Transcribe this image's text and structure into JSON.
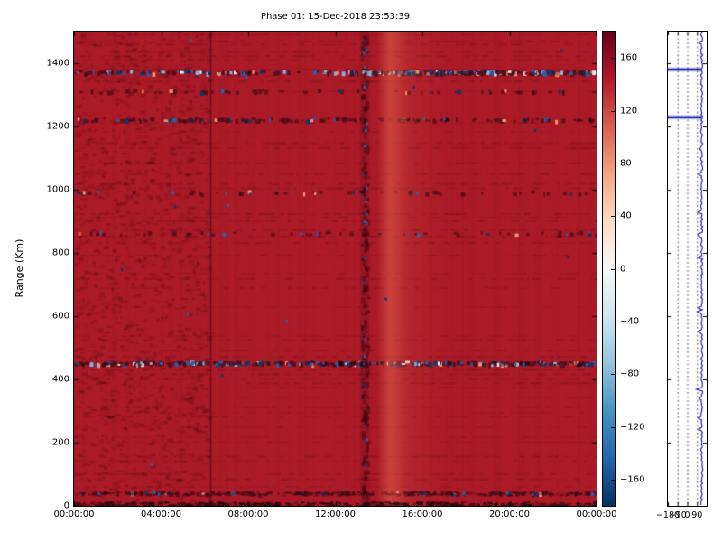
{
  "title": "Phase 01: 15-Dec-2018 23:53:39",
  "axes": {
    "ylabel": "Range (Km)"
  },
  "chart_data": {
    "type": "heatmap",
    "title": "Phase 01: 15-Dec-2018 23:53:39",
    "xlabel": "",
    "ylabel": "Range (Km)",
    "x_axis": {
      "unit": "time-of-day",
      "range_hours": [
        0,
        24
      ],
      "tick_hours": [
        0,
        4,
        8,
        12,
        16,
        20,
        24
      ],
      "tick_labels": [
        "00:00:00",
        "04:00:00",
        "08:00:00",
        "12:00:00",
        "16:00:00",
        "20:00:00",
        "00:00:00"
      ]
    },
    "y_axis": {
      "unit": "Km",
      "range": [
        0,
        1500
      ],
      "ticks": [
        0,
        200,
        400,
        600,
        800,
        1000,
        1200,
        1400
      ],
      "tick_labels": [
        "0",
        "200",
        "400",
        "600",
        "800",
        "1000",
        "1200",
        "1400"
      ]
    },
    "value_scale": {
      "range": [
        -180,
        180
      ],
      "colormap": "RdBu_r",
      "gradient_stops_bottom_to_top": [
        "#053061",
        "#2166ac",
        "#4393c3",
        "#92c5de",
        "#d1e5f0",
        "#f7f7f7",
        "#fddbc7",
        "#f4a582",
        "#d6604d",
        "#b2182b",
        "#67001f"
      ],
      "tick_values": [
        160,
        120,
        80,
        40,
        0,
        -40,
        -80,
        -120,
        -160
      ],
      "tick_labels": [
        "160",
        "120",
        "80",
        "40",
        "0",
        "−40",
        "−80",
        "−120",
        "−160"
      ]
    },
    "background_color": "#ad1b28",
    "background_value_approx": 150,
    "features": {
      "left_region_mottled_until_hour": 6.2,
      "dark_line_hour": 6.25,
      "noisy_column_hour": 13.3,
      "bright_band": {
        "start_hour": 13.9,
        "peak_hour": 14.5,
        "end_hour": 16.9
      },
      "speckle_bands": [
        {
          "km": 1370,
          "strength": "strong",
          "dots": []
        },
        {
          "km": 1310,
          "strength": "weak",
          "dots": [
            {
              "hour": 3.1,
              "color": "orange"
            }
          ]
        },
        {
          "km": 1220,
          "strength": "medium",
          "dots": []
        },
        {
          "km": 990,
          "strength": "weak",
          "dots": [
            {
              "hour": 0.4,
              "color": "salmon"
            }
          ]
        },
        {
          "km": 860,
          "strength": "weak",
          "dots": [
            {
              "hour": 0.2,
              "color": "orange"
            }
          ]
        },
        {
          "km": 450,
          "strength": "strong",
          "dots": [
            {
              "hour": 16.7,
              "color": "white"
            }
          ]
        },
        {
          "km": 40,
          "strength": "medium",
          "dots": []
        }
      ],
      "bottom_edge_dark_row": true
    },
    "side_panel": {
      "x_range": [
        -180,
        180
      ],
      "x_ticks": [
        -180,
        -90,
        0,
        90
      ],
      "x_tick_labels": [
        "−180",
        "−90",
        "0",
        "90"
      ],
      "grid_dotted_at": [
        -90,
        0,
        90
      ],
      "trace_color": "#2222b2",
      "trace_baseline": 134,
      "full_width_spikes_km": [
        1380,
        1229
      ]
    }
  }
}
